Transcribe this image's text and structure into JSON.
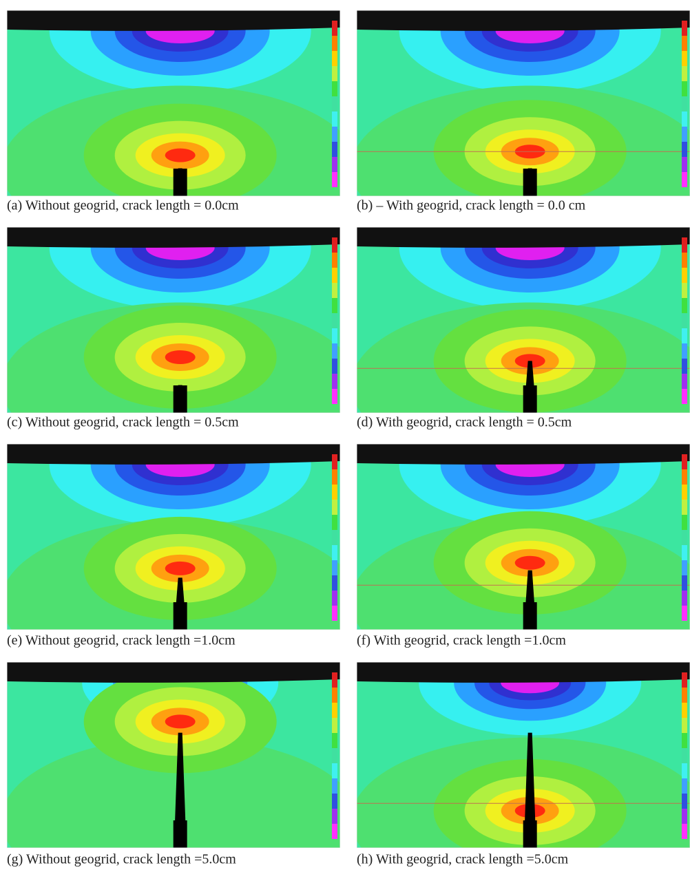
{
  "panels": [
    {
      "caption": "(a) Without geogrid, crack length = 0.0cm"
    },
    {
      "caption": "(b) – With geogrid, crack length = 0.0 cm"
    },
    {
      "caption": "(c) Without geogrid, crack length = 0.5cm"
    },
    {
      "caption": "(d) With geogrid, crack length = 0.5cm"
    },
    {
      "caption": "(e) Without geogrid, crack length =1.0cm"
    },
    {
      "caption": "(f) With geogrid, crack length =1.0cm"
    },
    {
      "caption": "(g) Without geogrid, crack length =5.0cm"
    },
    {
      "caption": "(h) With geogrid, crack length =5.0cm"
    }
  ]
}
